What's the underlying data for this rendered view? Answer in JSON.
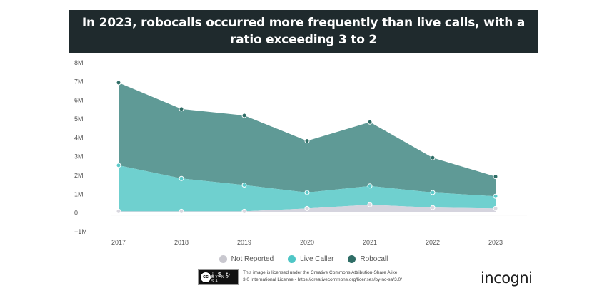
{
  "title": "In 2023, robocalls occurred more frequently than live calls, with a ratio exceeding 3 to 2",
  "colors": {
    "not_reported": "#d5d4de",
    "live_caller": "#6fd0cf",
    "robocall": "#5f9a96",
    "robocall_dot": "#2f6d66",
    "title_bg": "#1f2a2d"
  },
  "chart_data": {
    "type": "area",
    "stacked": true,
    "title": "In 2023, robocalls occurred more frequently than live calls, with a ratio exceeding 3 to 2",
    "categories": [
      "2017",
      "2018",
      "2019",
      "2020",
      "2021",
      "2022",
      "2023"
    ],
    "series": [
      {
        "name": "Not Reported",
        "values": [
          0.05,
          0.05,
          0.05,
          0.2,
          0.4,
          0.25,
          0.2
        ]
      },
      {
        "name": "Live Caller",
        "values": [
          2.45,
          1.75,
          1.4,
          0.85,
          1.0,
          0.8,
          0.65
        ]
      },
      {
        "name": "Robocall",
        "values": [
          4.4,
          3.7,
          3.7,
          2.75,
          3.4,
          1.85,
          1.05
        ]
      }
    ],
    "ylim": [
      -1,
      8
    ],
    "yticks": [
      "8M",
      "7M",
      "6M",
      "5M",
      "4M",
      "3M",
      "2M",
      "1M",
      "0",
      "−1M"
    ],
    "ytick_values": [
      8,
      7,
      6,
      5,
      4,
      3,
      2,
      1,
      0,
      -1
    ],
    "xlabel": "",
    "ylabel": "",
    "legend_position": "bottom"
  },
  "legend": [
    {
      "label": "Not Reported",
      "color": "#c9c8cf"
    },
    {
      "label": "Live Caller",
      "color": "#4fc6c6"
    },
    {
      "label": "Robocall",
      "color": "#2f6d66"
    }
  ],
  "footer": {
    "cc_circle": "cc",
    "cc_icons": "i $ ↻",
    "cc_labels": "BY NC SA",
    "license_line1": "This image is licensed under the Creative Commons Attribution-Share Alike",
    "license_line2": "3.0 International License - https://creativecommons.org/licenses/by-nc-sa/3.0/",
    "logo": "incogni"
  }
}
